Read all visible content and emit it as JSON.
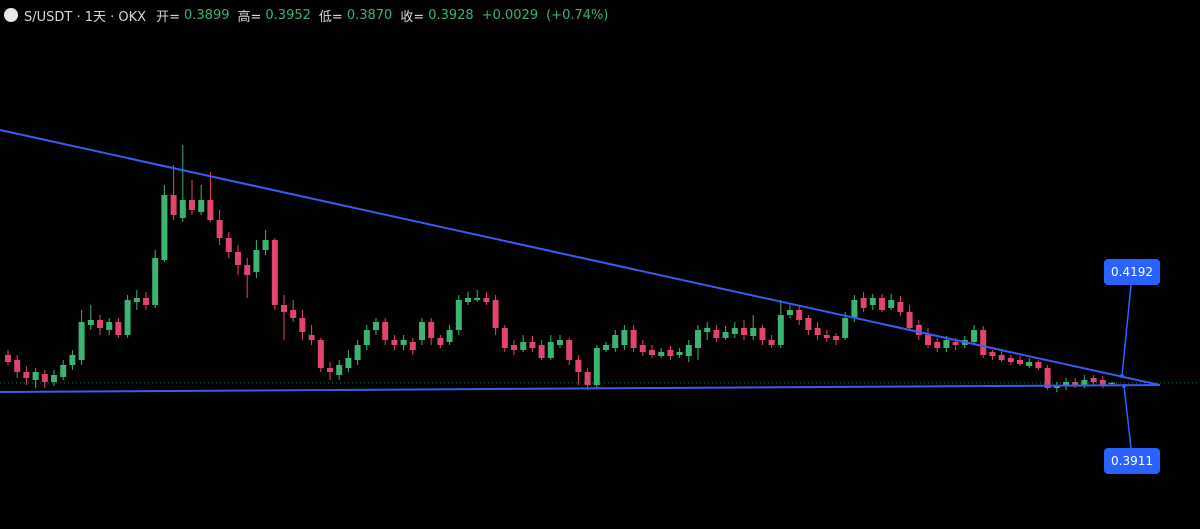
{
  "header": {
    "symbol": "S/USDT · 1天 · OKX",
    "open_label": "开=",
    "open": "0.3899",
    "high_label": "高=",
    "high": "0.3952",
    "low_label": "低=",
    "low": "0.3870",
    "close_label": "收=",
    "close": "0.3928",
    "change": "+0.0029",
    "change_pct": "(+0.74%)"
  },
  "chart_data": {
    "type": "candlestick",
    "ylim": [
      0.1,
      1.275
    ],
    "up_color": "#3cb371",
    "down_color": "#e2456b",
    "line_color": "#3b5cf0",
    "label_color": "#2962ff",
    "annotations": [
      "0.4192",
      "0.3911"
    ],
    "ohlc": [
      [
        0.4625,
        0.475,
        0.4375,
        0.445
      ],
      [
        0.45,
        0.4625,
        0.405,
        0.42
      ],
      [
        0.42,
        0.435,
        0.3875,
        0.405
      ],
      [
        0.4,
        0.43,
        0.38,
        0.42
      ],
      [
        0.415,
        0.425,
        0.38,
        0.395
      ],
      [
        0.395,
        0.425,
        0.385,
        0.4125
      ],
      [
        0.4075,
        0.45,
        0.4,
        0.4375
      ],
      [
        0.4375,
        0.475,
        0.425,
        0.4625
      ],
      [
        0.45,
        0.575,
        0.4375,
        0.545
      ],
      [
        0.5375,
        0.5875,
        0.525,
        0.55
      ],
      [
        0.55,
        0.5625,
        0.5125,
        0.53
      ],
      [
        0.525,
        0.555,
        0.5125,
        0.545
      ],
      [
        0.545,
        0.555,
        0.505,
        0.5125
      ],
      [
        0.5125,
        0.6125,
        0.505,
        0.6
      ],
      [
        0.595,
        0.625,
        0.575,
        0.605
      ],
      [
        0.605,
        0.62,
        0.575,
        0.5875
      ],
      [
        0.5875,
        0.725,
        0.58,
        0.705
      ],
      [
        0.7,
        0.8875,
        0.695,
        0.8625
      ],
      [
        0.8625,
        0.9375,
        0.8,
        0.8125
      ],
      [
        0.805,
        0.9875,
        0.795,
        0.85
      ],
      [
        0.85,
        0.9,
        0.8125,
        0.825
      ],
      [
        0.82,
        0.8875,
        0.8125,
        0.85
      ],
      [
        0.85,
        0.92,
        0.795,
        0.8
      ],
      [
        0.8,
        0.825,
        0.7375,
        0.755
      ],
      [
        0.755,
        0.77,
        0.705,
        0.72
      ],
      [
        0.72,
        0.7375,
        0.6625,
        0.6875
      ],
      [
        0.6875,
        0.705,
        0.605,
        0.6625
      ],
      [
        0.67,
        0.75,
        0.655,
        0.725
      ],
      [
        0.725,
        0.775,
        0.7125,
        0.75
      ],
      [
        0.75,
        0.755,
        0.575,
        0.5875
      ],
      [
        0.5875,
        0.6125,
        0.5,
        0.57
      ],
      [
        0.575,
        0.6,
        0.545,
        0.555
      ],
      [
        0.555,
        0.575,
        0.5,
        0.52
      ],
      [
        0.5125,
        0.5375,
        0.4875,
        0.5
      ],
      [
        0.5,
        0.505,
        0.42,
        0.43
      ],
      [
        0.43,
        0.445,
        0.4,
        0.42
      ],
      [
        0.4125,
        0.45,
        0.4,
        0.4375
      ],
      [
        0.43,
        0.475,
        0.42,
        0.455
      ],
      [
        0.45,
        0.5,
        0.4375,
        0.4875
      ],
      [
        0.4875,
        0.5375,
        0.475,
        0.525
      ],
      [
        0.525,
        0.555,
        0.5125,
        0.545
      ],
      [
        0.545,
        0.555,
        0.4875,
        0.5
      ],
      [
        0.5,
        0.5125,
        0.475,
        0.4875
      ],
      [
        0.4875,
        0.5125,
        0.475,
        0.5
      ],
      [
        0.495,
        0.505,
        0.4625,
        0.475
      ],
      [
        0.5,
        0.555,
        0.4875,
        0.545
      ],
      [
        0.545,
        0.555,
        0.4875,
        0.505
      ],
      [
        0.505,
        0.5125,
        0.48,
        0.4875
      ],
      [
        0.495,
        0.5375,
        0.4875,
        0.525
      ],
      [
        0.525,
        0.6125,
        0.5125,
        0.6
      ],
      [
        0.595,
        0.62,
        0.5875,
        0.605
      ],
      [
        0.6,
        0.625,
        0.595,
        0.605
      ],
      [
        0.605,
        0.62,
        0.5875,
        0.595
      ],
      [
        0.6,
        0.6125,
        0.5125,
        0.53
      ],
      [
        0.53,
        0.5375,
        0.47,
        0.48
      ],
      [
        0.4875,
        0.5,
        0.4625,
        0.475
      ],
      [
        0.475,
        0.5125,
        0.47,
        0.495
      ],
      [
        0.495,
        0.51,
        0.47,
        0.48
      ],
      [
        0.4875,
        0.5,
        0.45,
        0.455
      ],
      [
        0.455,
        0.5125,
        0.45,
        0.495
      ],
      [
        0.4875,
        0.5125,
        0.48,
        0.5
      ],
      [
        0.5,
        0.505,
        0.4375,
        0.45
      ],
      [
        0.45,
        0.4625,
        0.3875,
        0.42
      ],
      [
        0.42,
        0.43,
        0.375,
        0.3875
      ],
      [
        0.3875,
        0.4875,
        0.38,
        0.48
      ],
      [
        0.475,
        0.495,
        0.47,
        0.4875
      ],
      [
        0.48,
        0.525,
        0.47,
        0.5125
      ],
      [
        0.4875,
        0.5375,
        0.475,
        0.525
      ],
      [
        0.525,
        0.5375,
        0.47,
        0.48
      ],
      [
        0.4875,
        0.5,
        0.46,
        0.47
      ],
      [
        0.475,
        0.4875,
        0.455,
        0.4625
      ],
      [
        0.46,
        0.48,
        0.455,
        0.47
      ],
      [
        0.475,
        0.485,
        0.45,
        0.46
      ],
      [
        0.4625,
        0.48,
        0.455,
        0.47
      ],
      [
        0.46,
        0.5,
        0.445,
        0.4875
      ],
      [
        0.48,
        0.5375,
        0.45,
        0.525
      ],
      [
        0.52,
        0.545,
        0.5,
        0.53
      ],
      [
        0.525,
        0.5375,
        0.495,
        0.505
      ],
      [
        0.505,
        0.535,
        0.5,
        0.52
      ],
      [
        0.515,
        0.545,
        0.505,
        0.53
      ],
      [
        0.53,
        0.55,
        0.5,
        0.5125
      ],
      [
        0.51,
        0.5625,
        0.5,
        0.53
      ],
      [
        0.53,
        0.5375,
        0.4875,
        0.5
      ],
      [
        0.5,
        0.5125,
        0.48,
        0.4875
      ],
      [
        0.4875,
        0.6,
        0.48,
        0.5625
      ],
      [
        0.5625,
        0.5875,
        0.555,
        0.575
      ],
      [
        0.575,
        0.585,
        0.5375,
        0.55
      ],
      [
        0.555,
        0.5625,
        0.5125,
        0.525
      ],
      [
        0.53,
        0.545,
        0.5,
        0.5125
      ],
      [
        0.5125,
        0.525,
        0.495,
        0.505
      ],
      [
        0.51,
        0.5175,
        0.4875,
        0.5
      ],
      [
        0.505,
        0.57,
        0.5,
        0.555
      ],
      [
        0.555,
        0.6125,
        0.545,
        0.6
      ],
      [
        0.605,
        0.62,
        0.57,
        0.58
      ],
      [
        0.5875,
        0.615,
        0.575,
        0.605
      ],
      [
        0.605,
        0.615,
        0.57,
        0.575
      ],
      [
        0.58,
        0.615,
        0.575,
        0.6
      ],
      [
        0.595,
        0.61,
        0.56,
        0.57
      ],
      [
        0.57,
        0.5875,
        0.525,
        0.53
      ],
      [
        0.5375,
        0.55,
        0.5,
        0.5125
      ],
      [
        0.5125,
        0.53,
        0.48,
        0.4875
      ],
      [
        0.495,
        0.505,
        0.47,
        0.48
      ],
      [
        0.48,
        0.51,
        0.47,
        0.5
      ],
      [
        0.495,
        0.505,
        0.475,
        0.4875
      ],
      [
        0.4875,
        0.51,
        0.48,
        0.5
      ],
      [
        0.495,
        0.5375,
        0.4875,
        0.525
      ],
      [
        0.525,
        0.535,
        0.455,
        0.4625
      ],
      [
        0.47,
        0.475,
        0.45,
        0.46
      ],
      [
        0.4625,
        0.475,
        0.445,
        0.45
      ],
      [
        0.455,
        0.4625,
        0.4375,
        0.445
      ],
      [
        0.45,
        0.46,
        0.435,
        0.44
      ],
      [
        0.435,
        0.455,
        0.43,
        0.445
      ],
      [
        0.445,
        0.45,
        0.425,
        0.43
      ],
      [
        0.43,
        0.4375,
        0.375,
        0.38
      ],
      [
        0.38,
        0.395,
        0.37,
        0.385
      ],
      [
        0.385,
        0.405,
        0.375,
        0.395
      ],
      [
        0.395,
        0.405,
        0.38,
        0.3875
      ],
      [
        0.3875,
        0.4125,
        0.38,
        0.4
      ],
      [
        0.405,
        0.4125,
        0.385,
        0.395
      ],
      [
        0.4,
        0.41,
        0.38,
        0.3875
      ],
      [
        0.3899,
        0.3952,
        0.387,
        0.3928
      ]
    ]
  }
}
